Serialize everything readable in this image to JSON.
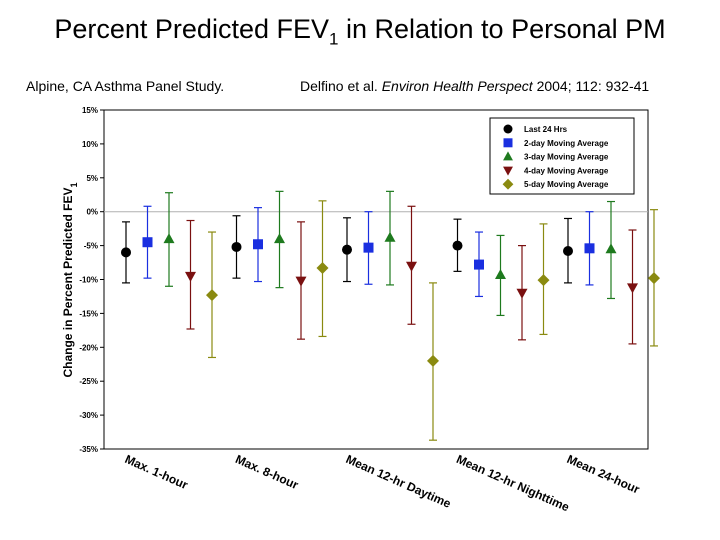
{
  "title": {
    "main": "Percent Predicted FEV",
    "subscript": "1",
    "suffix": " in Relation to Personal PM"
  },
  "subtitle_left": "Alpine, CA Asthma Panel Study.",
  "citation": {
    "authors": "Delfino et al. ",
    "journal": "Environ Health Perspect",
    "details": " 2004; 112: 932-41"
  },
  "chart_data": {
    "type": "scatter",
    "title": "",
    "xlabel": "",
    "ylabel": "Change in Percent Predicted FEV1",
    "ylim": [
      -35,
      15
    ],
    "y_ticks": [
      "15%",
      "10%",
      "5%",
      "0%",
      "-5%",
      "-10%",
      "-15%",
      "-20%",
      "-25%",
      "-30%",
      "-35%"
    ],
    "grid": false,
    "legend_position": "top-right",
    "categories": [
      "Max. 1-hour",
      "Max. 8-hour",
      "Mean 12-hr Daytime",
      "Mean 12-hr Nighttime",
      "Mean 24-hour"
    ],
    "series": [
      {
        "name": "Last 24 Hrs",
        "marker": "circle",
        "color": "#000000",
        "values": [
          -6.0,
          -5.2,
          -5.6,
          -5.0,
          -5.8
        ],
        "lower": [
          -10.5,
          -9.8,
          -10.3,
          -8.8,
          -10.5
        ],
        "upper": [
          -1.5,
          -0.6,
          -0.9,
          -1.1,
          -1.0
        ]
      },
      {
        "name": "2-day Moving Average",
        "marker": "square",
        "color": "#1a2fe0",
        "values": [
          -4.5,
          -4.8,
          -5.3,
          -7.8,
          -5.4
        ],
        "lower": [
          -9.8,
          -10.3,
          -10.7,
          -12.5,
          -10.8
        ],
        "upper": [
          0.8,
          0.6,
          0.0,
          -3.0,
          0.0
        ]
      },
      {
        "name": "3-day Moving Average",
        "marker": "triangle-up",
        "color": "#1e7a1e",
        "values": [
          -4.0,
          -4.0,
          -3.8,
          -9.3,
          -5.5
        ],
        "lower": [
          -11.0,
          -11.2,
          -10.8,
          -15.3,
          -12.8
        ],
        "upper": [
          2.8,
          3.0,
          3.0,
          -3.5,
          1.5
        ]
      },
      {
        "name": "4-day Moving Average",
        "marker": "triangle-down",
        "color": "#7a1010",
        "values": [
          -9.5,
          -10.2,
          -8.0,
          -12.0,
          -11.2
        ],
        "lower": [
          -17.3,
          -18.8,
          -16.6,
          -18.9,
          -19.5
        ],
        "upper": [
          -1.3,
          -1.5,
          0.8,
          -5.0,
          -2.7
        ]
      },
      {
        "name": "5-day Moving Average",
        "marker": "diamond",
        "color": "#8a8a10",
        "values": [
          -12.3,
          -8.3,
          -22.0,
          -10.1,
          -9.8
        ],
        "lower": [
          -21.5,
          -18.4,
          -33.7,
          -18.1,
          -19.8
        ],
        "upper": [
          -3.0,
          1.6,
          -10.5,
          -1.8,
          0.3
        ]
      }
    ]
  }
}
